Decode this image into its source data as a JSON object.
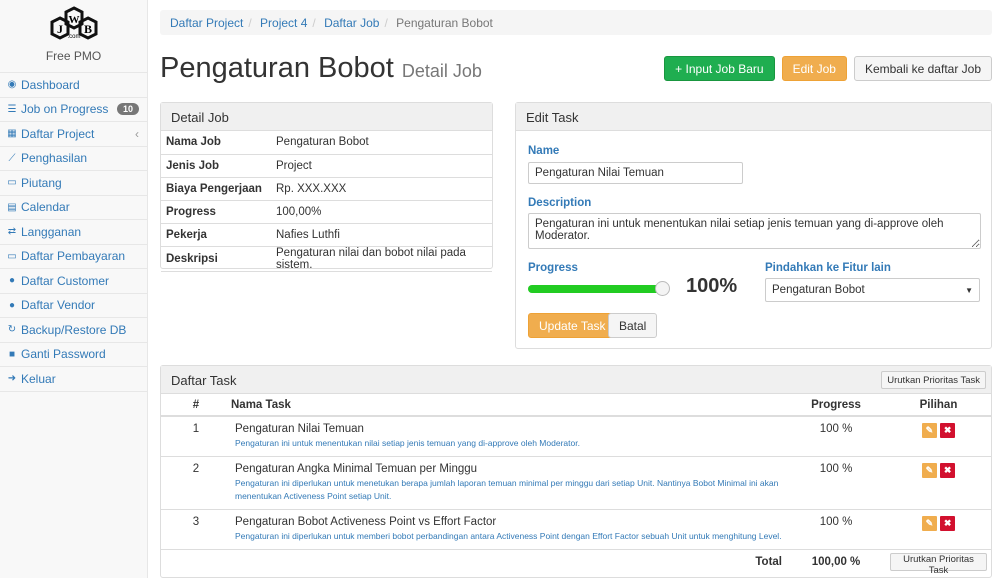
{
  "brand": {
    "logo_text": "JWB.com",
    "name": "Free PMO"
  },
  "sidebar": {
    "items": [
      {
        "label": "Dashboard",
        "icon": "dashboard-icon"
      },
      {
        "label": "Job on Progress",
        "icon": "tasks-icon",
        "badge": "10"
      },
      {
        "label": "Daftar Project",
        "icon": "table-icon"
      },
      {
        "label": "Penghasilan",
        "icon": "line-chart-icon"
      },
      {
        "label": "Piutang",
        "icon": "money-icon"
      },
      {
        "label": "Calendar",
        "icon": "calendar-icon"
      },
      {
        "label": "Langganan",
        "icon": "retweet-icon"
      },
      {
        "label": "Daftar Pembayaran",
        "icon": "money-icon"
      },
      {
        "label": "Daftar Customer",
        "icon": "users-icon"
      },
      {
        "label": "Daftar Vendor",
        "icon": "users-icon"
      },
      {
        "label": "Backup/Restore DB",
        "icon": "refresh-icon"
      },
      {
        "label": "Ganti Password",
        "icon": "lock-icon"
      },
      {
        "label": "Keluar",
        "icon": "sign-out-icon"
      }
    ]
  },
  "breadcrumb": [
    "Daftar Project",
    "Project 4",
    "Daftar Job",
    "Pengaturan Bobot"
  ],
  "header": {
    "title": "Pengaturan Bobot",
    "subtitle": "Detail Job",
    "btn_new": "+ Input Job Baru",
    "btn_edit": "Edit Job",
    "btn_back": "Kembali ke daftar Job"
  },
  "detail": {
    "title": "Detail Job",
    "rows": [
      {
        "k": "Nama Job",
        "v": "Pengaturan Bobot"
      },
      {
        "k": "Jenis Job",
        "v": "Project"
      },
      {
        "k": "Biaya Pengerjaan",
        "v": "Rp. XXX.XXX"
      },
      {
        "k": "Progress",
        "v": "100,00%"
      },
      {
        "k": "Pekerja",
        "v": "Nafies Luthfi"
      },
      {
        "k": "Deskripsi",
        "v": "Pengaturan nilai dan bobot nilai pada sistem."
      }
    ]
  },
  "edit": {
    "title": "Edit Task",
    "name_label": "Name",
    "name_value": "Pengaturan Nilai Temuan",
    "desc_label": "Description",
    "desc_value": "Pengaturan ini untuk menentukan nilai setiap jenis temuan yang di-approve oleh Moderator.",
    "progress_label": "Progress",
    "progress_value": 100,
    "progress_text": "100%",
    "move_label": "Pindahkan ke Fitur lain",
    "move_value": "Pengaturan Bobot",
    "btn_update": "Update Task",
    "btn_cancel": "Batal",
    "slider_color": "#22cc22"
  },
  "tasks": {
    "title": "Daftar Task",
    "sort_btn": "Urutkan Prioritas Task",
    "cols": [
      "#",
      "Nama Task",
      "Progress",
      "Pilihan"
    ],
    "rows": [
      {
        "no": "1",
        "name": "Pengaturan Nilai Temuan",
        "desc": "Pengaturan ini untuk menentukan nilai setiap jenis temuan yang di-approve oleh Moderator.",
        "progress": "100 %"
      },
      {
        "no": "2",
        "name": "Pengaturan Angka Minimal Temuan per Minggu",
        "desc": "Pengaturan ini diperlukan untuk menetukan berapa jumlah laporan temuan minimal per minggu dari setiap Unit. Nantinya Bobot Minimal ini akan menentukan Activeness Point setiap Unit.",
        "progress": "100 %"
      },
      {
        "no": "3",
        "name": "Pengaturan Bobot Activeness Point vs Effort Factor",
        "desc": "Pengaturan ini diperlukan untuk memberi bobot perbandingan antara Activeness Point dengan Effort Factor sebuah Unit untuk menghitung Level.",
        "progress": "100 %"
      }
    ],
    "total_label": "Total",
    "total_value": "100,00 %"
  }
}
